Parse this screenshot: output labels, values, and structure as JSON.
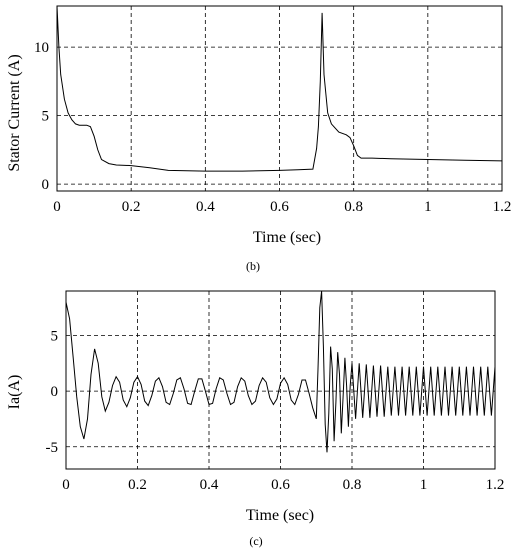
{
  "chart_data": [
    {
      "id": "b",
      "type": "line",
      "caption": "(b)",
      "xlabel": "Time (sec)",
      "ylabel": "Stator Current (A)",
      "xlim": [
        0,
        1.2
      ],
      "ylim": [
        -0.5,
        13
      ],
      "xticks": [
        0,
        0.2,
        0.4,
        0.6,
        0.8,
        1,
        1.2
      ],
      "xtick_labels": [
        "0",
        "0.2",
        "0.4",
        "0.6",
        "0.8",
        "1",
        "1.2"
      ],
      "yticks": [
        0,
        5,
        10
      ],
      "ytick_labels": [
        "0",
        "5",
        "10"
      ],
      "grid": true,
      "series": [
        {
          "x": [
            0,
            0.005,
            0.01,
            0.02,
            0.03,
            0.04,
            0.05,
            0.06,
            0.07,
            0.08,
            0.09,
            0.1,
            0.11,
            0.12,
            0.14,
            0.16,
            0.2,
            0.25,
            0.3,
            0.4,
            0.5,
            0.6,
            0.65,
            0.69,
            0.7,
            0.705,
            0.71,
            0.715,
            0.72,
            0.73,
            0.74,
            0.76,
            0.78,
            0.79,
            0.8,
            0.81,
            0.82,
            0.85,
            0.9,
            1,
            1.1,
            1.2
          ],
          "y": [
            13,
            10,
            8,
            6.2,
            5.2,
            4.7,
            4.4,
            4.3,
            4.3,
            4.3,
            4.2,
            3.5,
            2.5,
            1.8,
            1.5,
            1.4,
            1.35,
            1.2,
            1.0,
            0.95,
            0.95,
            1.0,
            1.05,
            1.1,
            2.6,
            4.2,
            7.5,
            12.5,
            8.0,
            5.2,
            4.4,
            3.8,
            3.6,
            3.4,
            2.8,
            2.1,
            1.9,
            1.9,
            1.85,
            1.8,
            1.75,
            1.7
          ]
        }
      ]
    },
    {
      "id": "c",
      "type": "line",
      "caption": "(c)",
      "xlabel": "Time (sec)",
      "ylabel": "Ia(A)",
      "xlim": [
        0,
        1.2
      ],
      "ylim": [
        -7,
        9
      ],
      "xticks": [
        0,
        0.2,
        0.4,
        0.6,
        0.8,
        1,
        1.2
      ],
      "xtick_labels": [
        "0",
        "0.2",
        "0.4",
        "0.6",
        "0.8",
        "1",
        "1.2"
      ],
      "yticks": [
        -5,
        0,
        5
      ],
      "ytick_labels": [
        "-5",
        "0",
        "5"
      ],
      "grid": true,
      "series": [
        {
          "x": [
            0,
            0.01,
            0.02,
            0.03,
            0.04,
            0.05,
            0.06,
            0.07,
            0.08,
            0.09,
            0.1,
            0.11,
            0.12,
            0.13,
            0.14,
            0.15,
            0.16,
            0.17,
            0.18,
            0.19,
            0.2,
            0.21,
            0.22,
            0.23,
            0.24,
            0.25,
            0.26,
            0.27,
            0.28,
            0.29,
            0.3,
            0.31,
            0.32,
            0.33,
            0.34,
            0.35,
            0.36,
            0.37,
            0.38,
            0.39,
            0.4,
            0.41,
            0.42,
            0.43,
            0.44,
            0.45,
            0.46,
            0.47,
            0.48,
            0.49,
            0.5,
            0.51,
            0.52,
            0.53,
            0.54,
            0.55,
            0.56,
            0.57,
            0.58,
            0.59,
            0.6,
            0.61,
            0.62,
            0.63,
            0.64,
            0.65,
            0.66,
            0.67,
            0.68,
            0.69,
            0.7,
            0.705,
            0.71,
            0.715,
            0.72,
            0.725,
            0.73,
            0.735,
            0.74,
            0.745,
            0.75,
            0.755,
            0.76,
            0.765,
            0.77,
            0.775,
            0.78,
            0.785,
            0.79,
            0.795,
            0.8,
            0.81,
            0.82,
            0.83,
            0.84,
            0.85,
            0.86,
            0.87,
            0.88,
            0.89,
            0.9,
            0.91,
            0.92,
            0.93,
            0.94,
            0.95,
            0.96,
            0.97,
            0.98,
            0.99,
            1.0,
            1.01,
            1.02,
            1.03,
            1.04,
            1.05,
            1.06,
            1.07,
            1.08,
            1.09,
            1.1,
            1.11,
            1.12,
            1.13,
            1.14,
            1.15,
            1.16,
            1.17,
            1.18,
            1.19,
            1.2
          ],
          "y": [
            8,
            6.5,
            3,
            -0.5,
            -3.2,
            -4.3,
            -2.5,
            1.5,
            3.8,
            2.5,
            -0.5,
            -1.8,
            -1,
            0.5,
            1.3,
            0.8,
            -0.8,
            -1.4,
            -0.6,
            0.8,
            1.3,
            0.6,
            -0.9,
            -1.3,
            -0.4,
            0.9,
            1.2,
            0.4,
            -1,
            -1.2,
            -0.2,
            1,
            1.2,
            0.2,
            -1.1,
            -1.2,
            0,
            1.1,
            1.1,
            0,
            -1.2,
            -1.1,
            0.2,
            1.2,
            1,
            -0.2,
            -1.2,
            -1,
            0.4,
            1.2,
            0.9,
            -0.4,
            -1.2,
            -0.9,
            0.5,
            1.2,
            0.8,
            -0.6,
            -1.2,
            -0.7,
            0.7,
            1.2,
            0.6,
            -0.8,
            -1.2,
            -0.3,
            1.0,
            1.0,
            -0.2,
            -1.5,
            -2.5,
            2,
            7.5,
            9,
            4,
            -3,
            -5.5,
            -2,
            4,
            2,
            -4.5,
            -1,
            3.5,
            1.5,
            -3.8,
            -0.5,
            3,
            0.5,
            -3.2,
            0.5,
            2.5,
            -2.5,
            2.5,
            -2.4,
            2.4,
            -2.4,
            2.3,
            -2.3,
            2.3,
            -2.3,
            2.2,
            -2.2,
            2.2,
            -2.2,
            2.2,
            -2.2,
            2.2,
            -2.2,
            2.2,
            -2.2,
            2.2,
            -2.2,
            2.2,
            -2.2,
            2.2,
            -2.2,
            2.2,
            -2.2,
            2.2,
            -2.2,
            2.2,
            -2.2,
            2.2,
            -2.2,
            2.2,
            -2.2,
            2.2,
            -2.2,
            2.2,
            -2.2,
            2.2
          ]
        }
      ]
    }
  ]
}
